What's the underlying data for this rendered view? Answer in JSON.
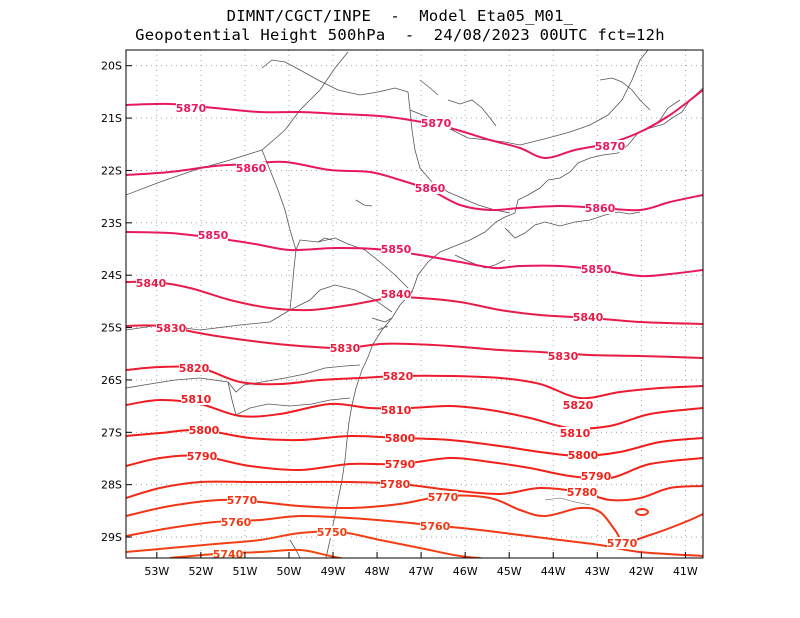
{
  "title": {
    "line1": "DIMNT/CGCT/INPE  -  Model Eta05_M01_",
    "line2": "Geopotential Height 500hPa  -  24/08/2023 00UTC fct=12h"
  },
  "chart_data": {
    "type": "contour",
    "variable": "Geopotential Height 500hPa",
    "lon_range": [
      -53.7,
      -40.6
    ],
    "lat_range": [
      -29.4,
      -19.7
    ],
    "x_ticks": [
      "53W",
      "52W",
      "51W",
      "50W",
      "49W",
      "48W",
      "47W",
      "46W",
      "45W",
      "44W",
      "43W",
      "42W",
      "41W"
    ],
    "x_tick_values": [
      -53,
      -52,
      -51,
      -50,
      -49,
      -48,
      -47,
      -46,
      -45,
      -44,
      -43,
      -42,
      -41
    ],
    "y_ticks": [
      "20S",
      "21S",
      "22S",
      "23S",
      "24S",
      "25S",
      "26S",
      "27S",
      "28S",
      "29S"
    ],
    "y_tick_values": [
      -20,
      -21,
      -22,
      -23,
      -24,
      -25,
      -26,
      -27,
      -28,
      -29
    ],
    "grid": "dotted",
    "contour_interval": 10,
    "contours": [
      {
        "level": 5870,
        "color": "#e8185c",
        "labels": [
          "5870",
          "5870",
          "5870"
        ]
      },
      {
        "level": 5860,
        "color": "#e8185c",
        "labels": [
          "5860",
          "5860",
          "5860"
        ]
      },
      {
        "level": 5850,
        "color": "#e8185c",
        "labels": [
          "5850",
          "5850",
          "5850"
        ]
      },
      {
        "level": 5840,
        "color": "#e81c4a",
        "labels": [
          "5840",
          "5840",
          "5840"
        ]
      },
      {
        "level": 5830,
        "color": "#e81c40",
        "labels": [
          "5830",
          "5830",
          "5830"
        ]
      },
      {
        "level": 5820,
        "color": "#ec1c30",
        "labels": [
          "5820",
          "5820",
          "5820"
        ]
      },
      {
        "level": 5810,
        "color": "#ee1c22",
        "labels": [
          "5810",
          "5810",
          "5810"
        ]
      },
      {
        "level": 5800,
        "color": "#f01c18",
        "labels": [
          "5800",
          "5800",
          "5800"
        ]
      },
      {
        "level": 5790,
        "color": "#f0221a",
        "labels": [
          "5790",
          "5790",
          "5790"
        ]
      },
      {
        "level": 5780,
        "color": "#f02a18",
        "labels": [
          "5780",
          "5780"
        ]
      },
      {
        "level": 5770,
        "color": "#f03416",
        "labels": [
          "5770",
          "5770",
          "5770"
        ]
      },
      {
        "level": 5760,
        "color": "#f03a16",
        "labels": [
          "5760",
          "5760"
        ]
      },
      {
        "level": 5750,
        "color": "#f04014",
        "labels": [
          "5750"
        ]
      },
      {
        "level": 5740,
        "color": "#f04612",
        "labels": [
          "5740"
        ]
      }
    ]
  }
}
